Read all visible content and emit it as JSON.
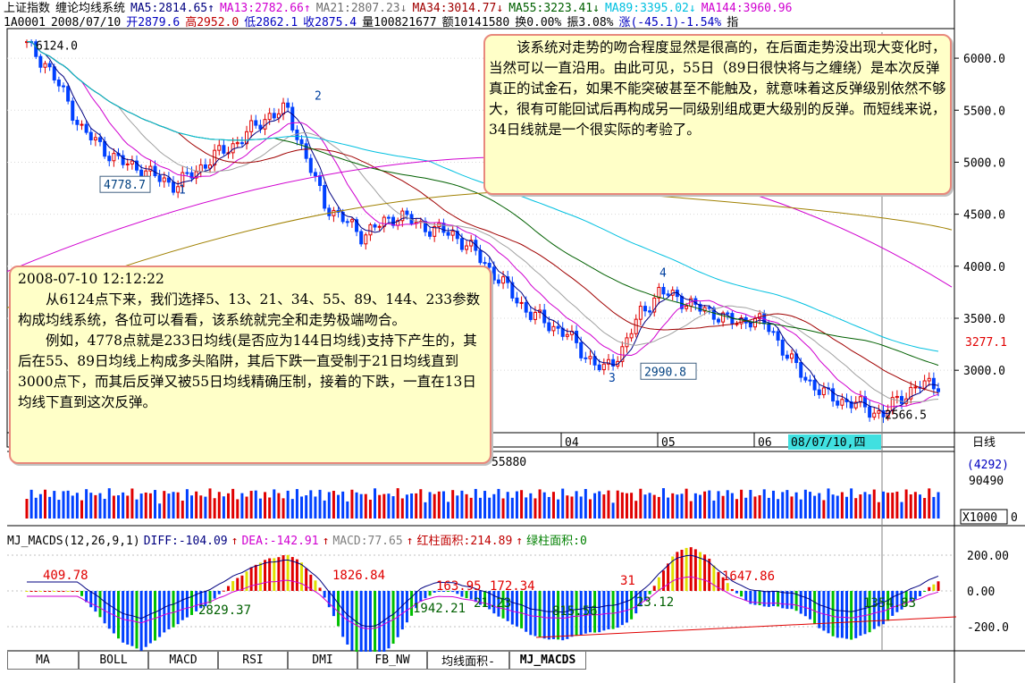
{
  "header": {
    "index_name": "上证指数",
    "system_name": "缠论均线系统",
    "ma": [
      {
        "label": "MA5:2814.65",
        "arrow": "↑",
        "color": "#000080"
      },
      {
        "label": "MA13:2782.66",
        "arrow": "↑",
        "color": "#d000d0"
      },
      {
        "label": "MA21:2807.23",
        "arrow": "↓",
        "color": "#707070"
      },
      {
        "label": "MA34:3014.77",
        "arrow": "↓",
        "color": "#a00000"
      },
      {
        "label": "MA55:3223.41",
        "arrow": "↓",
        "color": "#006000"
      },
      {
        "label": "MA89:3395.02",
        "arrow": "↓",
        "color": "#00c0e0"
      },
      {
        "label": "MA144:3960.96",
        "arrow": "",
        "color": "#d000d0"
      }
    ],
    "code": "1A0001",
    "date": "2008/07/10",
    "open": "开2879.6",
    "high": "高2952.0",
    "low": "低2862.1",
    "close": "收2875.4",
    "volume": "量100821677",
    "amount": "额10141580",
    "turnover": "换0.00%",
    "amplitude": "振3.08%",
    "change": "涨(-45.1)-1.54%",
    "extra": "指"
  },
  "chart_data": {
    "type": "candlestick",
    "title": "上证指数 缠论均线系统",
    "yaxis_ticks": [
      6000.0,
      5500.0,
      5000.0,
      4500.0,
      4000.0,
      3500.0,
      3000.0
    ],
    "yaxis_labels": [
      "6000.0",
      "5500.0",
      "5000.0",
      "4500.0",
      "4000.0",
      "3500.0",
      "3000.0"
    ],
    "current_price_label": "3277.1",
    "ylim": [
      2400,
      6250
    ],
    "x_month_labels": [
      "04",
      "05",
      "06"
    ],
    "cursor_date_label": "08/07/10,四",
    "period_label": "日线",
    "annotations": [
      {
        "text": "6124.0",
        "value": 6124.0
      },
      {
        "text": "4778.7",
        "value": 4778.7
      },
      {
        "text": "2990.8",
        "value": 2990.8
      },
      {
        "text": "2566.5",
        "value": 2566.5
      },
      {
        "text": "1"
      },
      {
        "text": "2"
      },
      {
        "text": "3"
      },
      {
        "text": "4"
      }
    ],
    "close_path": [
      6124,
      5950,
      5650,
      5300,
      5150,
      5000,
      4950,
      4850,
      4779,
      4900,
      5050,
      5150,
      5300,
      5450,
      5500,
      5050,
      4600,
      4450,
      4300,
      4400,
      4500,
      4400,
      4350,
      4300,
      4150,
      3950,
      3750,
      3550,
      3450,
      3350,
      3150,
      2991,
      3200,
      3550,
      3750,
      3700,
      3600,
      3550,
      3450,
      3500,
      3400,
      3100,
      2900,
      2750,
      2700,
      2650,
      2567,
      2750,
      2850,
      2875
    ],
    "volume_label": "55880",
    "volume_right_values": [
      "(4292)",
      "90490"
    ],
    "volume_unit": "X1000",
    "volume_zero": "0"
  },
  "macd": {
    "title": "MJ_MACDS(12,26,9,1)",
    "diff": "DIFF:-104.09",
    "diff_arrow": "↑",
    "dea": "DEA:-142.91",
    "dea_arrow": "↑",
    "macd": "MACD:77.65",
    "macd_arrow": "↑",
    "red_area": "红柱面积:214.89",
    "red_arrow": "↑",
    "green_area": "绿柱面积:0",
    "yaxis_labels": [
      "200.00",
      "0.00",
      "-200.0"
    ],
    "area_labels": [
      "409.78",
      "2829.37",
      "1826.84",
      "1942.21",
      "163.95",
      "21.23",
      "172.34",
      "815.56",
      "31",
      "23.12",
      "1647.86",
      "1354.83"
    ]
  },
  "notes": {
    "right": "该系统对走势的吻合程度显然是很高的，在后面走势没出现大变化时，当然可以一直沿用。由此可见，55日（89日很快将与之缠绕）是本次反弹真正的试金石，如果不能突破甚至不能触及，就意味着这反弹级别依然不够大，很有可能回试后再构成另一同级别组成更大级别的反弹。而短线来说，34日线就是一个很实际的考验了。",
    "left_timestamp": "2008-07-10 12:12:22",
    "left_p1": "从6124点下来，我们选择5、13、21、34、55、89、144、233参数构成均线系统，各位可以看看，该系统就完全和走势极端吻合。",
    "left_p2": "例如，4778点就是233日均线(是否应为144日均线)支持下产生的，其后在55、89日均线上构成多头陷阱，其后下跌一直受制于21日均线直到3000点下，而其后反弹又被55日均线精确压制，接着的下跌，一直在13日均线下直到这次反弹。"
  },
  "tabs": [
    "MA",
    "BOLL",
    "MACD",
    "RSI",
    "DMI",
    "FB_NW",
    "均线面积-",
    "MJ_MACDS"
  ],
  "colors": {
    "up": "#e00000",
    "down": "#0040ff",
    "axis": "#000000",
    "grid": "#c0c0c0",
    "note_bg": "#ffffc8",
    "note_border": "#e8887c"
  }
}
